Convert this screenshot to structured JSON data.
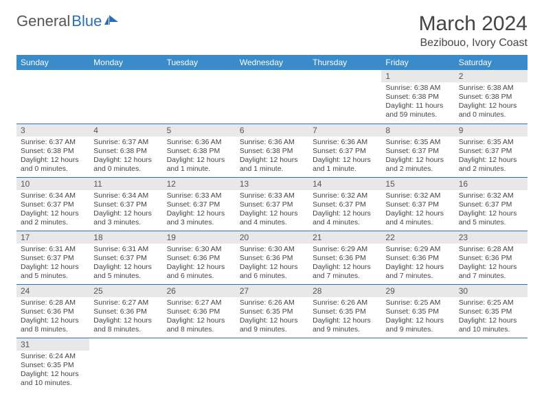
{
  "logo": {
    "text1": "General",
    "text2": "Blue"
  },
  "title": "March 2024",
  "subtitle": "Bezibouo, Ivory Coast",
  "colors": {
    "header_bg": "#3a8bc9",
    "header_text": "#ffffff",
    "row_divider": "#2a6fb5",
    "daynum_bg": "#e8e8e8",
    "text": "#444444",
    "logo_blue": "#2a6fb5"
  },
  "weekdays": [
    "Sunday",
    "Monday",
    "Tuesday",
    "Wednesday",
    "Thursday",
    "Friday",
    "Saturday"
  ],
  "weeks": [
    [
      null,
      null,
      null,
      null,
      null,
      {
        "n": "1",
        "sr": "6:38 AM",
        "ss": "6:38 PM",
        "dl": "11 hours and 59 minutes."
      },
      {
        "n": "2",
        "sr": "6:38 AM",
        "ss": "6:38 PM",
        "dl": "12 hours and 0 minutes."
      }
    ],
    [
      {
        "n": "3",
        "sr": "6:37 AM",
        "ss": "6:38 PM",
        "dl": "12 hours and 0 minutes."
      },
      {
        "n": "4",
        "sr": "6:37 AM",
        "ss": "6:38 PM",
        "dl": "12 hours and 0 minutes."
      },
      {
        "n": "5",
        "sr": "6:36 AM",
        "ss": "6:38 PM",
        "dl": "12 hours and 1 minute."
      },
      {
        "n": "6",
        "sr": "6:36 AM",
        "ss": "6:38 PM",
        "dl": "12 hours and 1 minute."
      },
      {
        "n": "7",
        "sr": "6:36 AM",
        "ss": "6:37 PM",
        "dl": "12 hours and 1 minute."
      },
      {
        "n": "8",
        "sr": "6:35 AM",
        "ss": "6:37 PM",
        "dl": "12 hours and 2 minutes."
      },
      {
        "n": "9",
        "sr": "6:35 AM",
        "ss": "6:37 PM",
        "dl": "12 hours and 2 minutes."
      }
    ],
    [
      {
        "n": "10",
        "sr": "6:34 AM",
        "ss": "6:37 PM",
        "dl": "12 hours and 2 minutes."
      },
      {
        "n": "11",
        "sr": "6:34 AM",
        "ss": "6:37 PM",
        "dl": "12 hours and 3 minutes."
      },
      {
        "n": "12",
        "sr": "6:33 AM",
        "ss": "6:37 PM",
        "dl": "12 hours and 3 minutes."
      },
      {
        "n": "13",
        "sr": "6:33 AM",
        "ss": "6:37 PM",
        "dl": "12 hours and 4 minutes."
      },
      {
        "n": "14",
        "sr": "6:32 AM",
        "ss": "6:37 PM",
        "dl": "12 hours and 4 minutes."
      },
      {
        "n": "15",
        "sr": "6:32 AM",
        "ss": "6:37 PM",
        "dl": "12 hours and 4 minutes."
      },
      {
        "n": "16",
        "sr": "6:32 AM",
        "ss": "6:37 PM",
        "dl": "12 hours and 5 minutes."
      }
    ],
    [
      {
        "n": "17",
        "sr": "6:31 AM",
        "ss": "6:37 PM",
        "dl": "12 hours and 5 minutes."
      },
      {
        "n": "18",
        "sr": "6:31 AM",
        "ss": "6:37 PM",
        "dl": "12 hours and 5 minutes."
      },
      {
        "n": "19",
        "sr": "6:30 AM",
        "ss": "6:36 PM",
        "dl": "12 hours and 6 minutes."
      },
      {
        "n": "20",
        "sr": "6:30 AM",
        "ss": "6:36 PM",
        "dl": "12 hours and 6 minutes."
      },
      {
        "n": "21",
        "sr": "6:29 AM",
        "ss": "6:36 PM",
        "dl": "12 hours and 7 minutes."
      },
      {
        "n": "22",
        "sr": "6:29 AM",
        "ss": "6:36 PM",
        "dl": "12 hours and 7 minutes."
      },
      {
        "n": "23",
        "sr": "6:28 AM",
        "ss": "6:36 PM",
        "dl": "12 hours and 7 minutes."
      }
    ],
    [
      {
        "n": "24",
        "sr": "6:28 AM",
        "ss": "6:36 PM",
        "dl": "12 hours and 8 minutes."
      },
      {
        "n": "25",
        "sr": "6:27 AM",
        "ss": "6:36 PM",
        "dl": "12 hours and 8 minutes."
      },
      {
        "n": "26",
        "sr": "6:27 AM",
        "ss": "6:36 PM",
        "dl": "12 hours and 8 minutes."
      },
      {
        "n": "27",
        "sr": "6:26 AM",
        "ss": "6:35 PM",
        "dl": "12 hours and 9 minutes."
      },
      {
        "n": "28",
        "sr": "6:26 AM",
        "ss": "6:35 PM",
        "dl": "12 hours and 9 minutes."
      },
      {
        "n": "29",
        "sr": "6:25 AM",
        "ss": "6:35 PM",
        "dl": "12 hours and 9 minutes."
      },
      {
        "n": "30",
        "sr": "6:25 AM",
        "ss": "6:35 PM",
        "dl": "12 hours and 10 minutes."
      }
    ],
    [
      {
        "n": "31",
        "sr": "6:24 AM",
        "ss": "6:35 PM",
        "dl": "12 hours and 10 minutes."
      },
      null,
      null,
      null,
      null,
      null,
      null
    ]
  ],
  "labels": {
    "sunrise": "Sunrise:",
    "sunset": "Sunset:",
    "daylight": "Daylight:"
  }
}
